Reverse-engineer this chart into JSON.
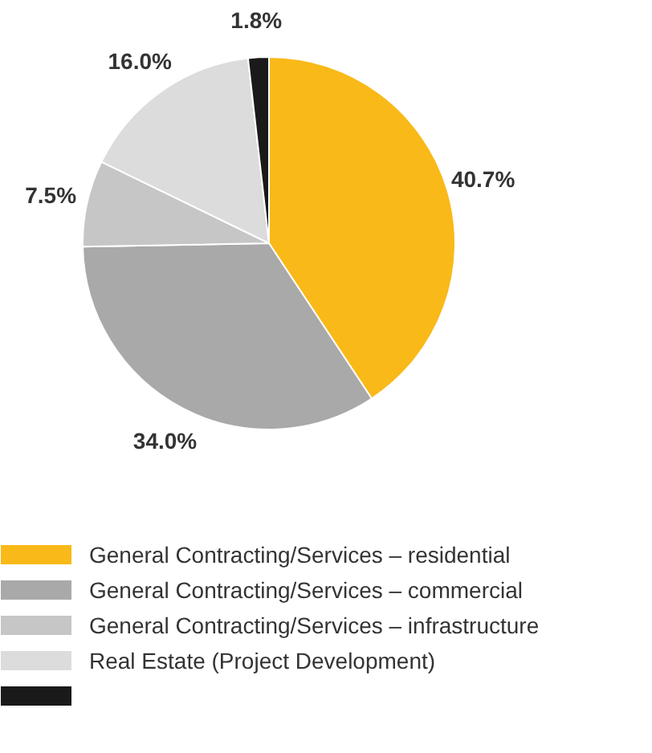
{
  "chart_data": {
    "type": "pie",
    "categories": [
      "General Contracting/Services – residential",
      "General Contracting/Services – commercial",
      "General Contracting/Services – infrastructure",
      "Real Estate (Project Development)",
      null
    ],
    "values": [
      40.7,
      34.0,
      7.5,
      16.0,
      1.8
    ],
    "colors": [
      "#f9b918",
      "#a9a9a9",
      "#c6c6c6",
      "#dcdcdc",
      "#1a1a1a"
    ],
    "value_labels": [
      "40.7%",
      "34.0%",
      "7.5%",
      "16.0%",
      "1.8%"
    ],
    "legend": "bottom"
  }
}
